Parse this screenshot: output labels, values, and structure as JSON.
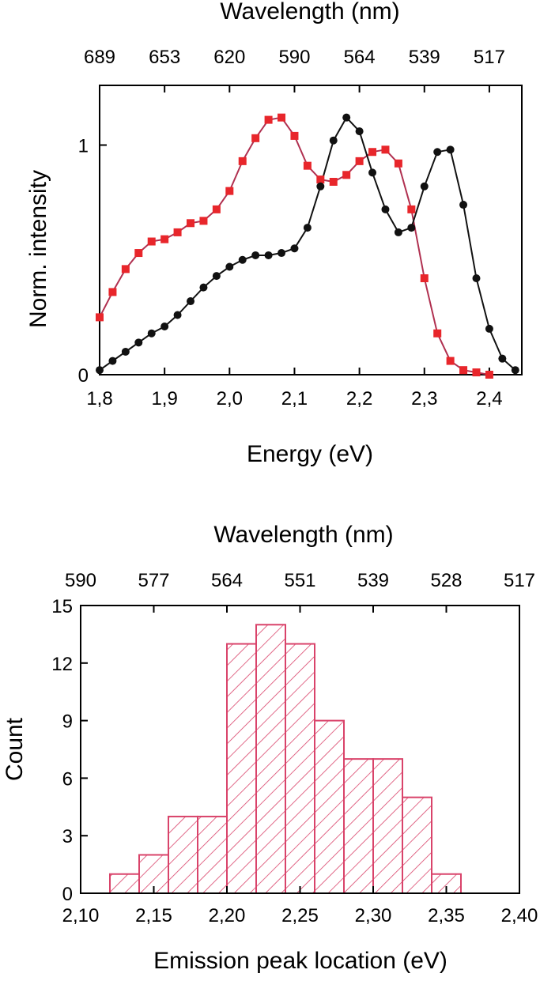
{
  "chart_data": [
    {
      "type": "scatter",
      "xlabel": "Energy (eV)",
      "ylabel": "Norm. intensity",
      "top_axis_label": "Wavelength (nm)",
      "xlim": [
        1.8,
        2.45
      ],
      "ylim": [
        0,
        1.26
      ],
      "x_ticks": [
        1.8,
        1.9,
        2.0,
        2.1,
        2.2,
        2.3,
        2.4
      ],
      "x_tick_labels": [
        "1,8",
        "1,9",
        "2,0",
        "2,1",
        "2,2",
        "2,3",
        "2,4"
      ],
      "y_ticks": [
        0,
        1
      ],
      "y_tick_labels": [
        "0",
        "1"
      ],
      "top_ticks": [
        {
          "energy": 1.8,
          "label": "689"
        },
        {
          "energy": 1.9,
          "label": "653"
        },
        {
          "energy": 2.0,
          "label": "620"
        },
        {
          "energy": 2.1,
          "label": "590"
        },
        {
          "energy": 2.2,
          "label": "564"
        },
        {
          "energy": 2.3,
          "label": "539"
        },
        {
          "energy": 2.4,
          "label": "517"
        }
      ],
      "series": [
        {
          "color": "#e8262b",
          "marker": "square",
          "fit_line_color": "#b03050",
          "x": [
            1.8,
            1.82,
            1.84,
            1.86,
            1.88,
            1.9,
            1.92,
            1.94,
            1.96,
            1.98,
            2.0,
            2.02,
            2.04,
            2.06,
            2.08,
            2.1,
            2.12,
            2.14,
            2.16,
            2.18,
            2.2,
            2.22,
            2.24,
            2.26,
            2.28,
            2.3,
            2.32,
            2.34,
            2.36,
            2.38,
            2.4
          ],
          "y": [
            0.25,
            0.36,
            0.46,
            0.53,
            0.58,
            0.59,
            0.62,
            0.66,
            0.67,
            0.72,
            0.8,
            0.93,
            1.03,
            1.11,
            1.12,
            1.04,
            0.91,
            0.85,
            0.84,
            0.87,
            0.93,
            0.97,
            0.98,
            0.92,
            0.72,
            0.42,
            0.18,
            0.06,
            0.02,
            0.01,
            0.0
          ]
        },
        {
          "color": "#111111",
          "marker": "circle",
          "fit_line_color": "#111111",
          "x": [
            1.8,
            1.82,
            1.84,
            1.86,
            1.88,
            1.9,
            1.92,
            1.94,
            1.96,
            1.98,
            2.0,
            2.02,
            2.04,
            2.06,
            2.08,
            2.1,
            2.12,
            2.14,
            2.16,
            2.18,
            2.2,
            2.22,
            2.24,
            2.26,
            2.28,
            2.3,
            2.32,
            2.34,
            2.36,
            2.38,
            2.4,
            2.42,
            2.44
          ],
          "y": [
            0.02,
            0.06,
            0.1,
            0.14,
            0.18,
            0.21,
            0.26,
            0.32,
            0.38,
            0.43,
            0.47,
            0.5,
            0.52,
            0.52,
            0.53,
            0.55,
            0.64,
            0.82,
            1.02,
            1.12,
            1.06,
            0.88,
            0.72,
            0.62,
            0.64,
            0.82,
            0.97,
            0.98,
            0.74,
            0.42,
            0.2,
            0.07,
            0.02
          ]
        }
      ]
    },
    {
      "type": "bar",
      "xlabel": "Emission peak location (eV)",
      "ylabel": "Count",
      "top_axis_label": "Wavelength (nm)",
      "xlim": [
        2.1,
        2.4
      ],
      "ylim": [
        0,
        15
      ],
      "bin_edges": [
        2.12,
        2.14,
        2.16,
        2.18,
        2.2,
        2.22,
        2.24,
        2.26,
        2.28,
        2.3,
        2.32,
        2.34,
        2.36
      ],
      "values": [
        1,
        2,
        4,
        4,
        13,
        14,
        13,
        9,
        7,
        7,
        5,
        1
      ],
      "bar_color": "#d9436a",
      "fill_pattern": "diagonal-hatch",
      "x_ticks": [
        2.1,
        2.15,
        2.2,
        2.25,
        2.3,
        2.35,
        2.4
      ],
      "x_tick_labels": [
        "2,10",
        "2,15",
        "2,20",
        "2,25",
        "2,30",
        "2,35",
        "2,40"
      ],
      "y_ticks": [
        0,
        3,
        6,
        9,
        12,
        15
      ],
      "y_tick_labels": [
        "0",
        "3",
        "6",
        "9",
        "12",
        "15"
      ],
      "top_ticks": [
        {
          "energy": 2.1,
          "label": "590"
        },
        {
          "energy": 2.15,
          "label": "577"
        },
        {
          "energy": 2.2,
          "label": "564"
        },
        {
          "energy": 2.25,
          "label": "551"
        },
        {
          "energy": 2.3,
          "label": "539"
        },
        {
          "energy": 2.35,
          "label": "528"
        },
        {
          "energy": 2.4,
          "label": "517"
        }
      ]
    }
  ]
}
